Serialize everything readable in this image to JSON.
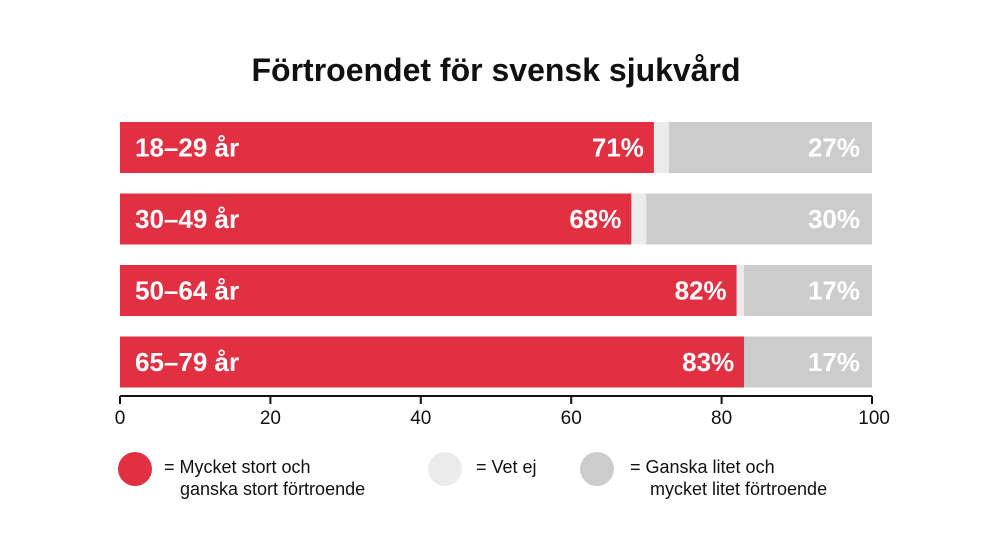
{
  "colors": {
    "stort": "#e03042",
    "vet_ej": "#ebebeb",
    "litet": "#cccccc",
    "label_light": "#ffffff",
    "axis": "#111111"
  },
  "chart_data": {
    "type": "bar",
    "orientation": "horizontal",
    "stacked": true,
    "title": "Förtroendet för svensk sjukvård",
    "categories": [
      "18–29 år",
      "30–49 år",
      "50–64 år",
      "65–79 år"
    ],
    "series": [
      {
        "name": "Mycket stort och ganska stort förtroende",
        "values": [
          71,
          68,
          82,
          83
        ],
        "labels": [
          "71%",
          "68%",
          "82%",
          "83%"
        ]
      },
      {
        "name": "Vet ej",
        "values": [
          2,
          2,
          1,
          0
        ],
        "labels": [
          "",
          "",
          "",
          ""
        ]
      },
      {
        "name": "Ganska litet och mycket litet förtroende",
        "values": [
          27,
          30,
          17,
          17
        ],
        "labels": [
          "27%",
          "30%",
          "17%",
          "17%"
        ]
      }
    ],
    "xlim": [
      0,
      100
    ],
    "xticks": [
      "0",
      "20",
      "40",
      "60",
      "80",
      "100"
    ],
    "xlabel": "",
    "ylabel": "",
    "grid": false,
    "legend_position": "bottom"
  },
  "legend": [
    {
      "line1": "= Mycket stort och",
      "line2": "ganska stort förtroende"
    },
    {
      "line1": "= Vet ej",
      "line2": ""
    },
    {
      "line1": "= Ganska litet och",
      "line2": "mycket litet förtroende"
    }
  ]
}
